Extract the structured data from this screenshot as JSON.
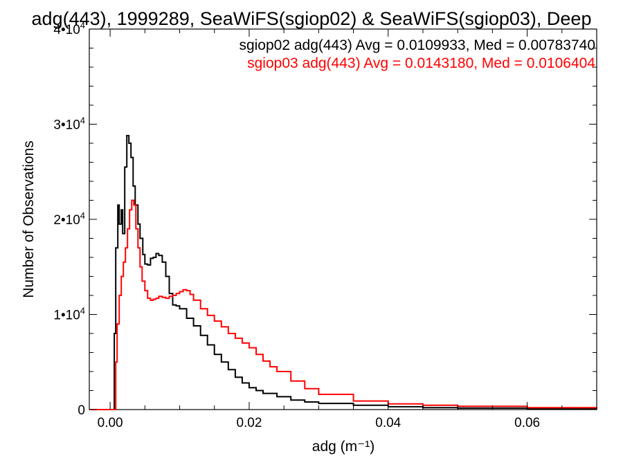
{
  "chart_data": {
    "type": "line",
    "title": "adg(443), 1999289, SeaWiFS(sgiop02) & SeaWiFS(sgiop03), Deep",
    "xlabel": "adg (m⁻¹)",
    "ylabel": "Number of Observations",
    "xlim": [
      -0.003,
      0.07
    ],
    "ylim": [
      0,
      40000
    ],
    "x_ticks": [
      0.0,
      0.02,
      0.04,
      0.06
    ],
    "x_tick_labels": [
      "0.00",
      "0.02",
      "0.04",
      "0.06"
    ],
    "y_ticks": [
      0,
      10000,
      20000,
      30000,
      40000
    ],
    "y_tick_labels": [
      {
        "mantissa": "0",
        "exp": ""
      },
      {
        "mantissa": "1•10",
        "exp": "4"
      },
      {
        "mantissa": "2•10",
        "exp": "4"
      },
      {
        "mantissa": "3•10",
        "exp": "4"
      },
      {
        "mantissa": "4•10",
        "exp": "4"
      }
    ],
    "grid": false,
    "legend_placement": "top-right",
    "step": true,
    "series": [
      {
        "name": "sgiop02",
        "color": "#000000",
        "label": "sgiop02 adg(443) Avg = 0.0109933, Med = 0.00783740",
        "x": [
          -0.003,
          0.0005,
          0.0006,
          0.0008,
          0.0011,
          0.0013,
          0.0016,
          0.0018,
          0.0021,
          0.0024,
          0.0027,
          0.003,
          0.0033,
          0.0036,
          0.004,
          0.0043,
          0.0047,
          0.005,
          0.0054,
          0.0058,
          0.0062,
          0.0066,
          0.007,
          0.0075,
          0.008,
          0.0085,
          0.009,
          0.0095,
          0.01,
          0.011,
          0.012,
          0.013,
          0.014,
          0.015,
          0.016,
          0.017,
          0.018,
          0.019,
          0.02,
          0.021,
          0.022,
          0.024,
          0.026,
          0.028,
          0.03,
          0.035,
          0.04,
          0.045,
          0.05,
          0.06,
          0.07
        ],
        "y": [
          0,
          0,
          8000,
          17000,
          21500,
          19500,
          21000,
          18500,
          25500,
          28800,
          28000,
          26500,
          23500,
          21500,
          19500,
          18000,
          16300,
          15300,
          15200,
          15900,
          16000,
          16400,
          16200,
          15500,
          14000,
          12200,
          11000,
          10900,
          10600,
          9600,
          8800,
          7800,
          6800,
          5800,
          5000,
          4200,
          3400,
          2800,
          2300,
          2000,
          1700,
          1350,
          1000,
          800,
          650,
          450,
          300,
          200,
          150,
          100,
          60
        ]
      },
      {
        "name": "sgiop03",
        "color": "#ff0000",
        "label": "sgiop03 adg(443) Avg = 0.0143180, Med = 0.0106404",
        "x": [
          -0.003,
          0.0006,
          0.0008,
          0.001,
          0.0013,
          0.0016,
          0.0019,
          0.0022,
          0.0025,
          0.0028,
          0.0031,
          0.0034,
          0.0037,
          0.004,
          0.0043,
          0.0046,
          0.005,
          0.0054,
          0.0058,
          0.0062,
          0.0066,
          0.007,
          0.0075,
          0.008,
          0.0085,
          0.009,
          0.0095,
          0.01,
          0.0105,
          0.011,
          0.0115,
          0.012,
          0.013,
          0.014,
          0.015,
          0.016,
          0.017,
          0.018,
          0.019,
          0.02,
          0.021,
          0.022,
          0.023,
          0.024,
          0.026,
          0.028,
          0.03,
          0.035,
          0.04,
          0.045,
          0.05,
          0.06,
          0.07
        ],
        "y": [
          0,
          0,
          5000,
          9000,
          12000,
          14000,
          15500,
          17000,
          19000,
          21000,
          22000,
          21500,
          19000,
          17000,
          15000,
          13500,
          12500,
          11700,
          11500,
          11600,
          11700,
          11900,
          11800,
          11700,
          11900,
          12000,
          12200,
          12400,
          12600,
          12500,
          12100,
          11500,
          10600,
          9900,
          9300,
          8700,
          8000,
          7500,
          7000,
          6500,
          5800,
          5100,
          4500,
          4000,
          3000,
          2200,
          1600,
          900,
          600,
          450,
          350,
          200,
          120
        ]
      }
    ]
  }
}
